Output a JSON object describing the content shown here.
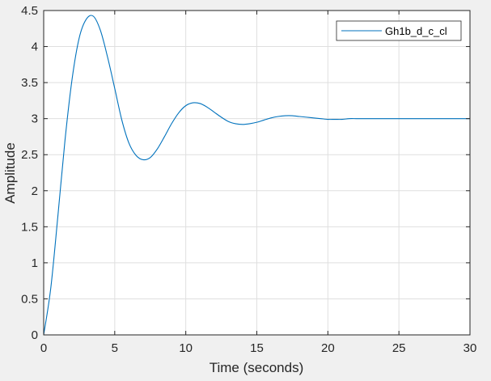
{
  "chart_data": {
    "type": "line",
    "title": "",
    "xlabel": "Time (seconds)",
    "ylabel": "Amplitude",
    "xlim": [
      0,
      30
    ],
    "ylim": [
      0,
      4.5
    ],
    "x_ticks": [
      0,
      5,
      10,
      15,
      20,
      25,
      30
    ],
    "x_tick_labels": [
      "0",
      "5",
      "10",
      "15",
      "20",
      "25",
      "30"
    ],
    "y_ticks": [
      0,
      0.5,
      1,
      1.5,
      2,
      2.5,
      3,
      3.5,
      4,
      4.5
    ],
    "y_tick_labels": [
      "0",
      "0.5",
      "1",
      "1.5",
      "2",
      "2.5",
      "3",
      "3.5",
      "4",
      "4.5"
    ],
    "grid": true,
    "legend_position": "top-right",
    "colors": {
      "series": "#0072bd",
      "axes_background": "#ffffff",
      "figure_background": "#f0f0f0",
      "grid": "#dfdfdf",
      "axis": "#262626"
    },
    "series": [
      {
        "name": "Gh1b_d_c_cl",
        "x": [
          0,
          0.5,
          1,
          1.5,
          2,
          2.5,
          3,
          3.5,
          4,
          4.5,
          5,
          5.5,
          6,
          6.5,
          7,
          7.5,
          8,
          8.5,
          9,
          9.5,
          10,
          10.5,
          11,
          11.5,
          12,
          12.5,
          13,
          13.5,
          14,
          14.5,
          15,
          15.5,
          16,
          16.5,
          17,
          17.5,
          18,
          18.5,
          19,
          19.5,
          20,
          20.5,
          21,
          21.5,
          22,
          22.5,
          23,
          23.5,
          24,
          25,
          26,
          27,
          28,
          29,
          30
        ],
        "y": [
          0,
          0.65,
          1.65,
          2.7,
          3.55,
          4.12,
          4.38,
          4.42,
          4.22,
          3.85,
          3.42,
          2.98,
          2.66,
          2.49,
          2.43,
          2.46,
          2.58,
          2.75,
          2.93,
          3.08,
          3.18,
          3.22,
          3.21,
          3.16,
          3.09,
          3.02,
          2.96,
          2.93,
          2.92,
          2.93,
          2.95,
          2.98,
          3.01,
          3.03,
          3.04,
          3.04,
          3.03,
          3.02,
          3.01,
          3.0,
          2.99,
          2.99,
          2.99,
          3.0,
          3.0,
          3.0,
          3.0,
          3.0,
          3.0,
          3.0,
          3.0,
          3.0,
          3.0,
          3.0,
          3.0
        ]
      }
    ]
  }
}
